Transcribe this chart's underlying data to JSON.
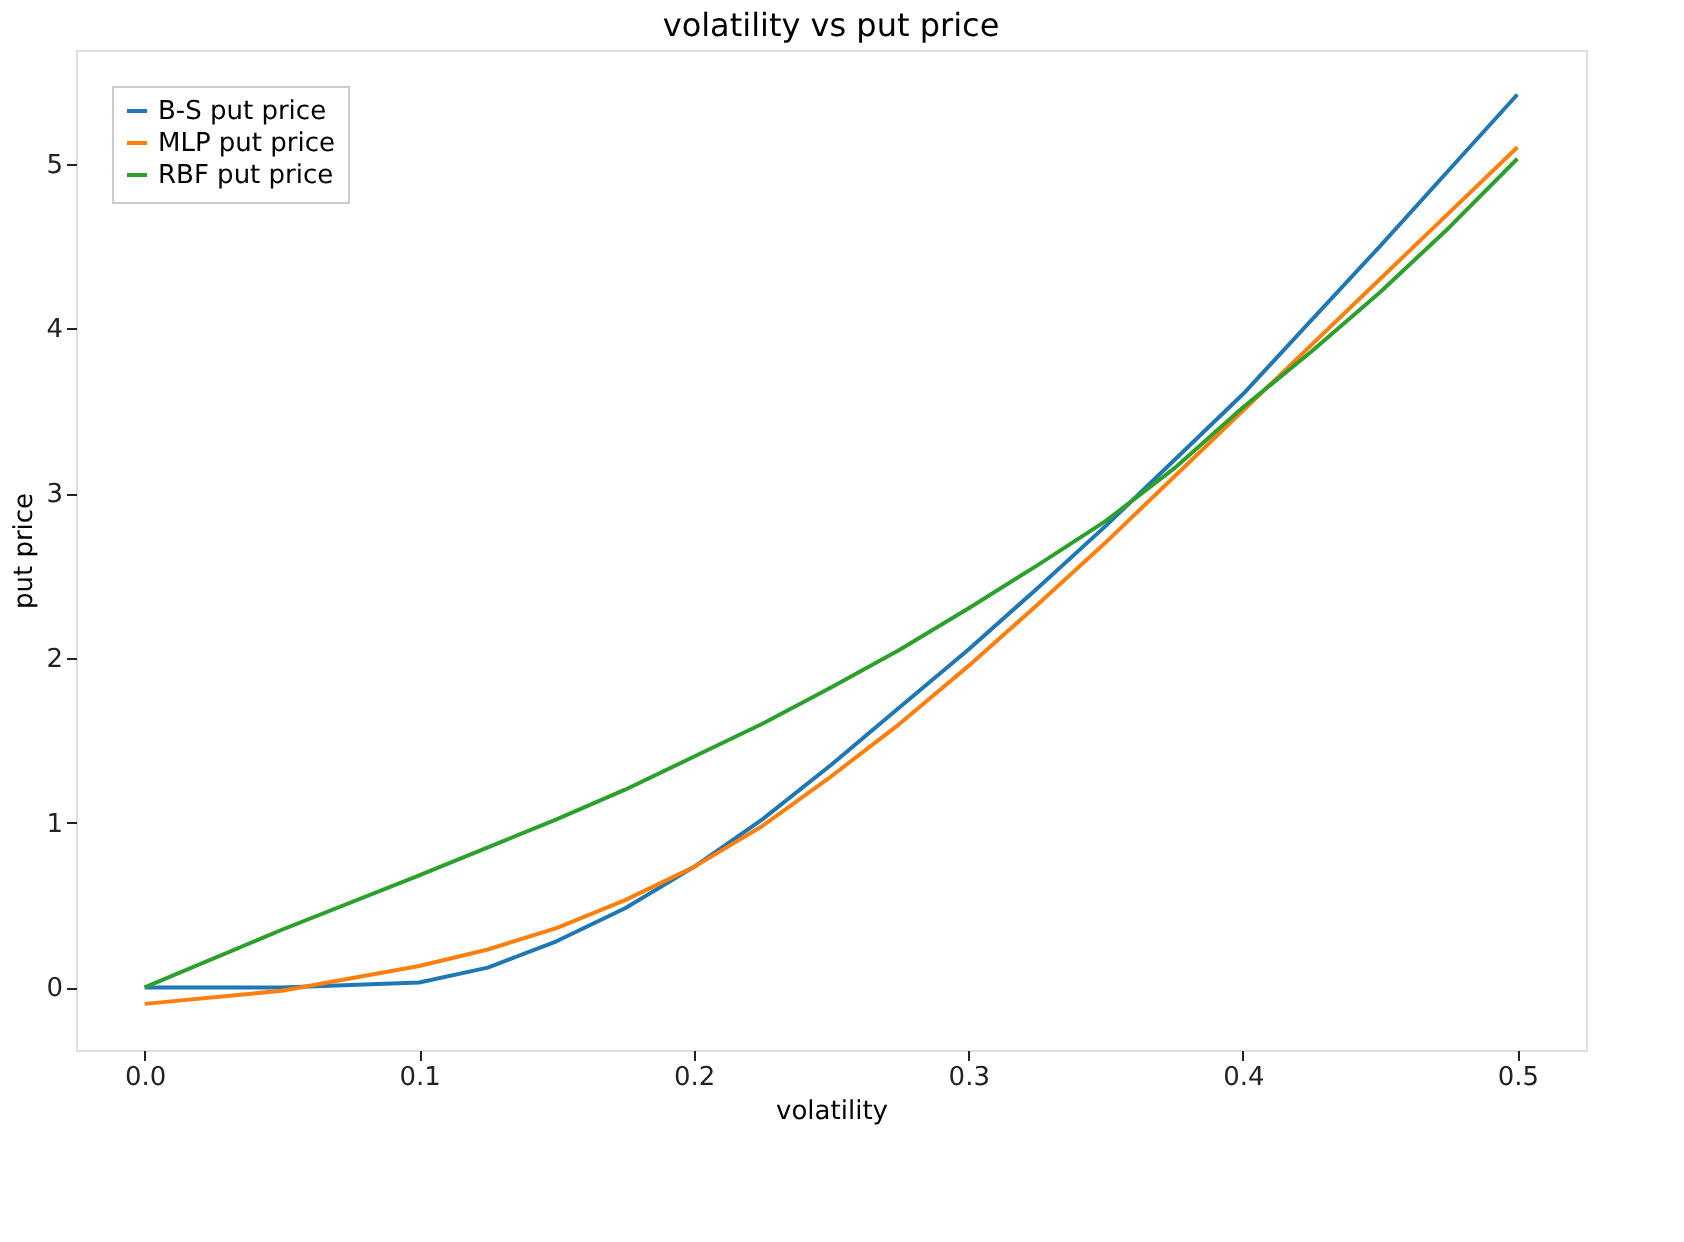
{
  "chart_data": {
    "type": "line",
    "title": "volatility vs put price",
    "xlabel": "volatility",
    "ylabel": "put price",
    "x": [
      0,
      0.05,
      0.1,
      0.125,
      0.15,
      0.175,
      0.2,
      0.225,
      0.25,
      0.275,
      0.3,
      0.325,
      0.35,
      0.375,
      0.4,
      0.425,
      0.45,
      0.475,
      0.5
    ],
    "series": [
      {
        "name": "B-S put price",
        "color": "#1f77b4",
        "values": [
          0,
          0,
          0.03,
          0.12,
          0.28,
          0.48,
          0.73,
          1.02,
          1.35,
          1.7,
          2.05,
          2.42,
          2.8,
          3.2,
          3.6,
          4.05,
          4.5,
          4.96,
          5.42
        ]
      },
      {
        "name": "MLP put price",
        "color": "#ff7f0e",
        "values": [
          -0.1,
          -0.02,
          0.13,
          0.23,
          0.36,
          0.53,
          0.73,
          0.98,
          1.28,
          1.6,
          1.95,
          2.32,
          2.7,
          3.1,
          3.5,
          3.9,
          4.3,
          4.7,
          5.1
        ]
      },
      {
        "name": "RBF put price",
        "color": "#2ca02c",
        "values": [
          0,
          0.35,
          0.68,
          0.85,
          1.02,
          1.2,
          1.4,
          1.6,
          1.82,
          2.05,
          2.3,
          2.56,
          2.83,
          3.15,
          3.52,
          3.86,
          4.22,
          4.61,
          5.03
        ]
      }
    ],
    "xlim": [
      -0.025,
      0.525
    ],
    "xticks": [
      {
        "value": 0,
        "label": "0.0"
      },
      0.1,
      0.2,
      0.3,
      0.4,
      0.5
    ],
    "ylim": [
      -0.38,
      5.69
    ],
    "yticks": [
      0,
      1,
      2,
      3,
      4,
      5
    ],
    "grid": false,
    "legend": "top left",
    "marker": "none",
    "line_style": "solid"
  }
}
